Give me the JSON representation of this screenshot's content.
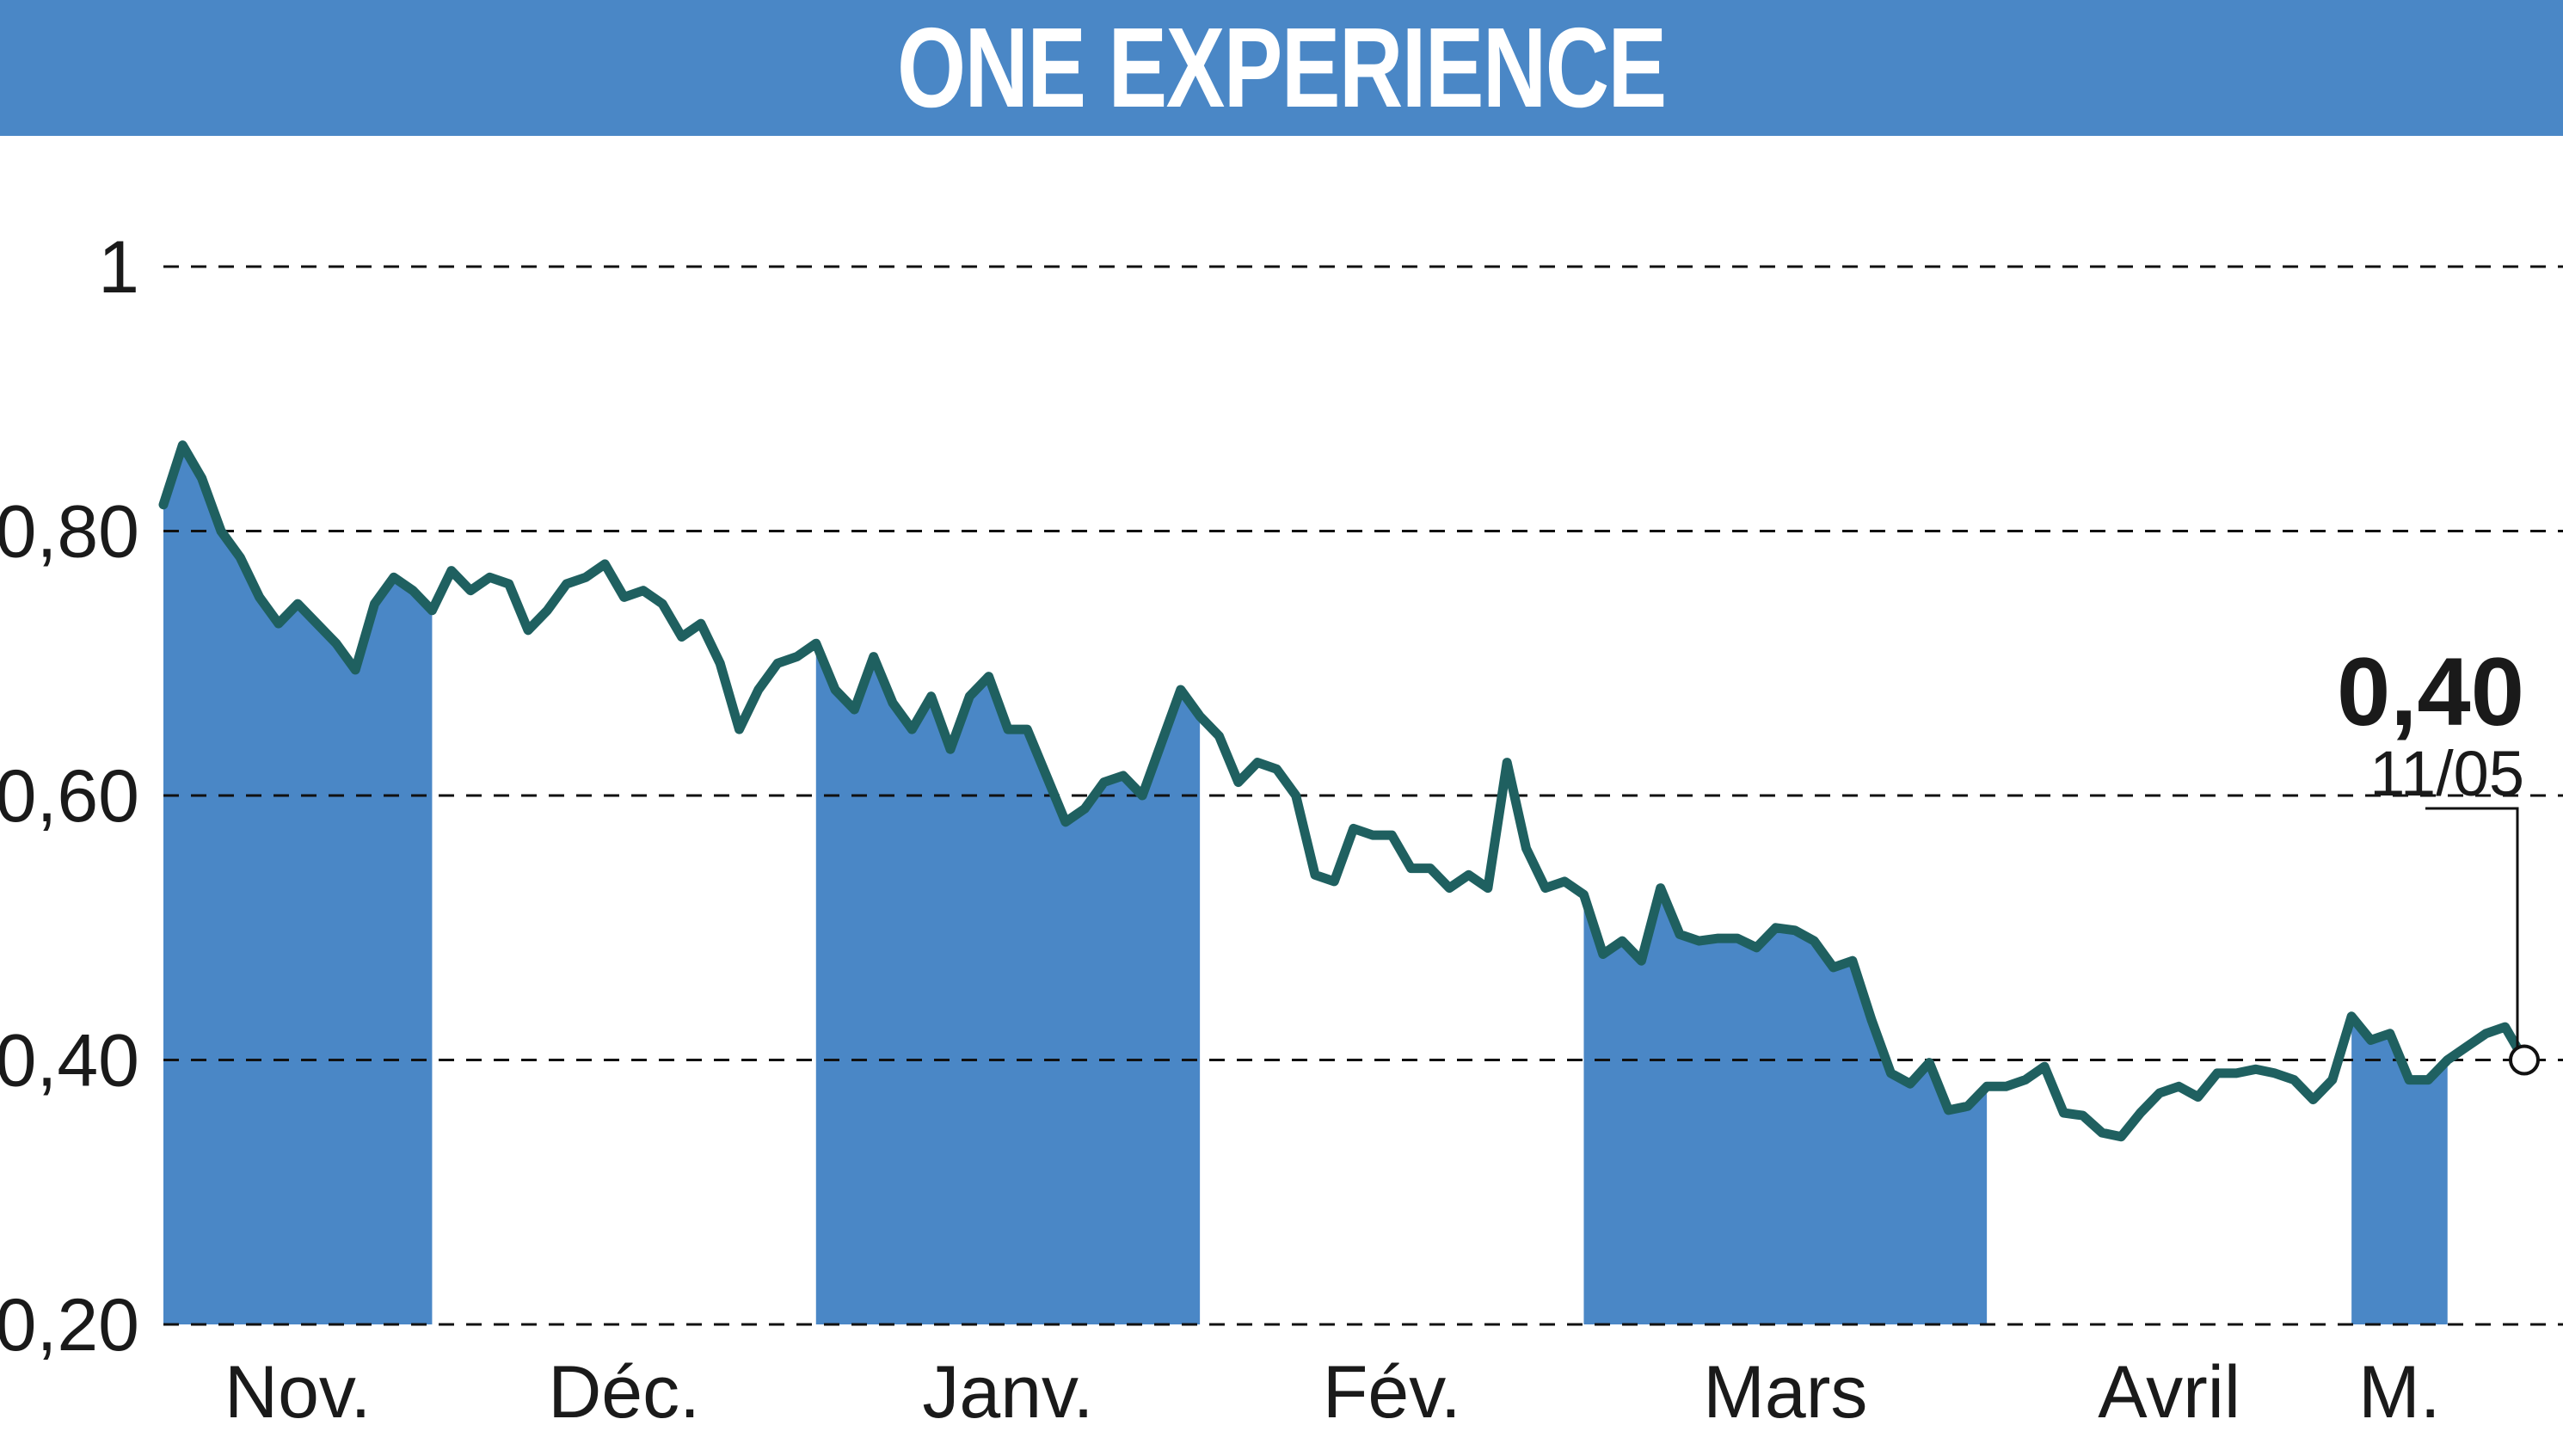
{
  "header": {
    "title": "ONE EXPERIENCE"
  },
  "colors": {
    "title_bg": "#4a87c6",
    "area_fill": "#4a87c6",
    "line": "#1f6060",
    "grid": "#111111",
    "text": "#1a1a1a"
  },
  "chart_data": {
    "type": "line",
    "title": "ONE EXPERIENCE",
    "xlabel": "",
    "ylabel": "",
    "ylim": [
      0.2,
      1.0
    ],
    "y_ticks": [
      {
        "value": 1.0,
        "label": "1"
      },
      {
        "value": 0.8,
        "label": "0,80"
      },
      {
        "value": 0.6,
        "label": "0,60"
      },
      {
        "value": 0.4,
        "label": "0,40"
      },
      {
        "value": 0.2,
        "label": "0,20"
      }
    ],
    "grid": "horizontal dashed",
    "months": [
      {
        "label": "Nov.",
        "start": 0,
        "end": 14,
        "shaded": true
      },
      {
        "label": "Déc.",
        "start": 14,
        "end": 34,
        "shaded": false
      },
      {
        "label": "Janv.",
        "start": 34,
        "end": 54,
        "shaded": true
      },
      {
        "label": "Fév.",
        "start": 54,
        "end": 74,
        "shaded": false
      },
      {
        "label": "Mars",
        "start": 74,
        "end": 95,
        "shaded": true
      },
      {
        "label": "Avril",
        "start": 95,
        "end": 114,
        "shaded": false
      },
      {
        "label": "M.",
        "start": 114,
        "end": 119,
        "shaded": true
      }
    ],
    "series": [
      {
        "values": [
          0.82,
          0.865,
          0.84,
          0.8,
          0.78,
          0.75,
          0.73,
          0.745,
          0.73,
          0.715,
          0.695,
          0.745,
          0.765,
          0.755,
          0.74,
          0.77,
          0.755,
          0.765,
          0.76,
          0.725,
          0.74,
          0.76,
          0.765,
          0.775,
          0.75,
          0.755,
          0.745,
          0.72,
          0.73,
          0.7,
          0.65,
          0.68,
          0.7,
          0.705,
          0.715,
          0.68,
          0.665,
          0.705,
          0.67,
          0.65,
          0.675,
          0.635,
          0.675,
          0.69,
          0.65,
          0.65,
          0.615,
          0.58,
          0.59,
          0.61,
          0.615,
          0.6,
          0.64,
          0.68,
          0.66,
          0.645,
          0.61,
          0.625,
          0.62,
          0.6,
          0.54,
          0.535,
          0.575,
          0.57,
          0.57,
          0.545,
          0.545,
          0.53,
          0.54,
          0.53,
          0.625,
          0.56,
          0.53,
          0.535,
          0.525,
          0.48,
          0.49,
          0.475,
          0.53,
          0.495,
          0.49,
          0.492,
          0.492,
          0.485,
          0.5,
          0.498,
          0.49,
          0.47,
          0.475,
          0.43,
          0.39,
          0.382,
          0.398,
          0.362,
          0.365,
          0.38,
          0.38,
          0.385,
          0.395,
          0.36,
          0.358,
          0.345,
          0.342,
          0.36,
          0.375,
          0.38,
          0.372,
          0.39,
          0.39,
          0.393,
          0.39,
          0.385,
          0.37,
          0.385,
          0.433,
          0.415,
          0.42,
          0.385,
          0.385,
          0.4,
          0.41,
          0.42,
          0.425,
          0.4
        ]
      }
    ],
    "last_value": {
      "label": "0,40",
      "date": "11/05",
      "value": 0.4
    }
  }
}
